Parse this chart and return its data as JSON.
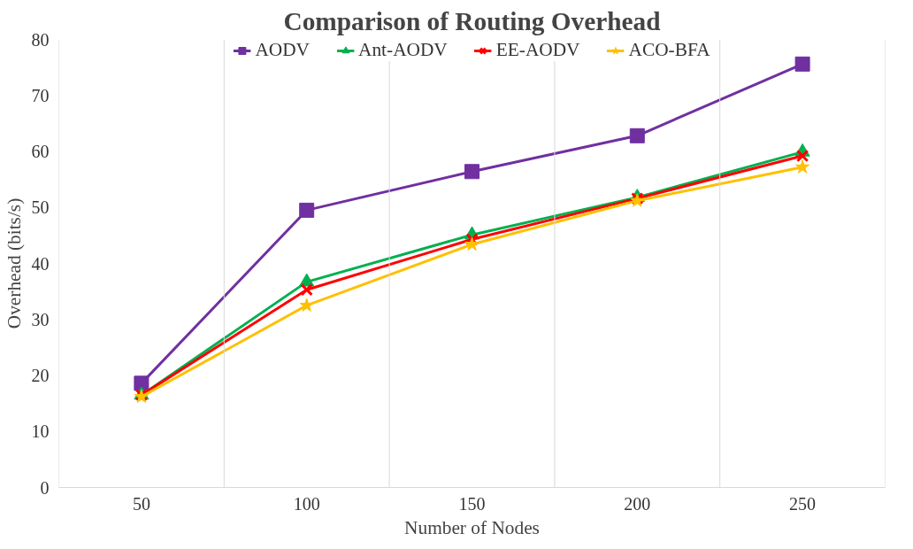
{
  "chart_data": {
    "type": "line",
    "title": "Comparison of Routing Overhead",
    "xlabel": "Number of Nodes",
    "ylabel": "Overhead (bits/s)",
    "categories": [
      "50",
      "100",
      "150",
      "200",
      "250"
    ],
    "series": [
      {
        "name": "AODV",
        "color": "#7030a0",
        "marker": "square",
        "values": [
          18.6,
          49.5,
          56.4,
          62.8,
          75.6
        ]
      },
      {
        "name": "Ant-AODV",
        "color": "#00b050",
        "marker": "triangle",
        "values": [
          16.5,
          36.7,
          45.1,
          51.8,
          59.9
        ]
      },
      {
        "name": "EE-AODV",
        "color": "#ff0000",
        "marker": "cross",
        "values": [
          16.5,
          35.3,
          44.3,
          51.6,
          59.2
        ]
      },
      {
        "name": "ACO-BFA",
        "color": "#ffc000",
        "marker": "star",
        "values": [
          16.2,
          32.5,
          43.4,
          51.2,
          57.2
        ]
      }
    ],
    "ylim": [
      0,
      80
    ],
    "yticks": [
      0,
      10,
      20,
      30,
      40,
      50,
      60,
      70,
      80
    ],
    "grid": "x",
    "legend": "top",
    "line_style": "solid"
  }
}
